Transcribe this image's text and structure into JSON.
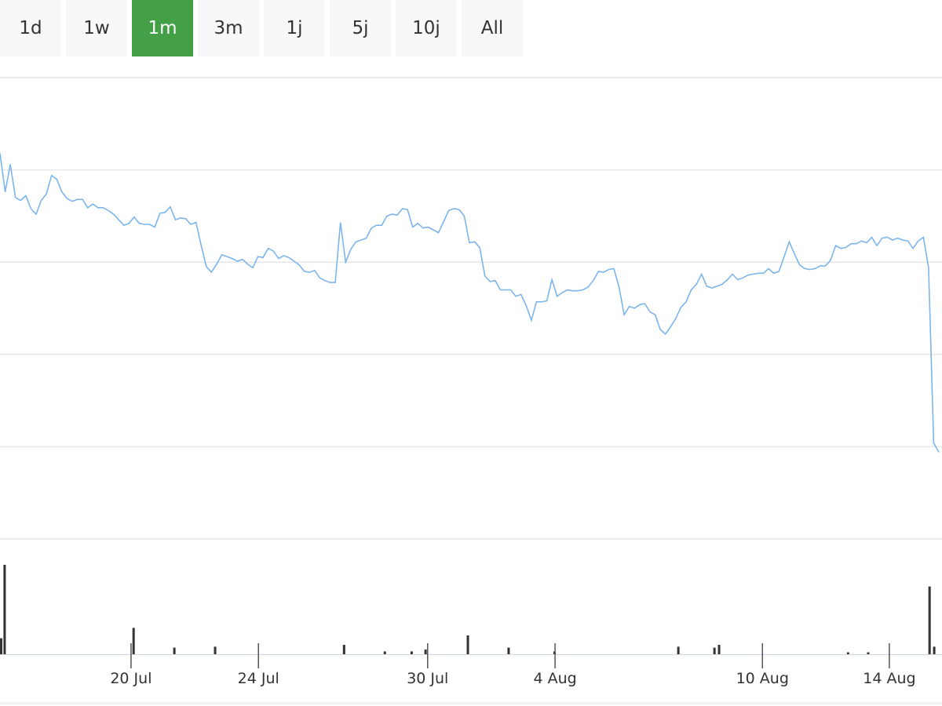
{
  "range_buttons": {
    "labels": [
      "1d",
      "1w",
      "1m",
      "3m",
      "1j",
      "5j",
      "10j",
      "All"
    ],
    "active": 2
  },
  "chart_data": [
    {
      "type": "line",
      "xlim": [
        0,
        182
      ],
      "ylim": [
        0,
        5
      ],
      "gridlines": [
        0,
        1,
        2,
        3,
        4,
        5
      ],
      "series": [
        {
          "color": "#7cb5ec",
          "values": [
            4.18,
            3.76,
            4.06,
            3.7,
            3.67,
            3.72,
            3.58,
            3.52,
            3.67,
            3.74,
            3.94,
            3.9,
            3.76,
            3.69,
            3.66,
            3.68,
            3.68,
            3.59,
            3.63,
            3.59,
            3.59,
            3.56,
            3.52,
            3.46,
            3.4,
            3.42,
            3.49,
            3.42,
            3.41,
            3.41,
            3.38,
            3.53,
            3.54,
            3.6,
            3.46,
            3.48,
            3.47,
            3.41,
            3.43,
            3.18,
            2.95,
            2.89,
            2.98,
            3.08,
            3.06,
            3.04,
            3.01,
            3.03,
            2.98,
            2.94,
            3.06,
            3.05,
            3.15,
            3.12,
            3.04,
            3.07,
            3.05,
            3.01,
            2.97,
            2.9,
            2.89,
            2.91,
            2.83,
            2.8,
            2.78,
            2.78,
            3.43,
            3.0,
            3.14,
            3.22,
            3.24,
            3.26,
            3.37,
            3.4,
            3.4,
            3.5,
            3.52,
            3.51,
            3.58,
            3.57,
            3.38,
            3.42,
            3.37,
            3.38,
            3.35,
            3.32,
            3.44,
            3.56,
            3.58,
            3.57,
            3.5,
            3.21,
            3.22,
            3.16,
            2.85,
            2.79,
            2.8,
            2.7,
            2.7,
            2.7,
            2.63,
            2.65,
            2.53,
            2.37,
            2.57,
            2.57,
            2.58,
            2.81,
            2.63,
            2.67,
            2.7,
            2.69,
            2.69,
            2.7,
            2.73,
            2.8,
            2.9,
            2.89,
            2.92,
            2.93,
            2.73,
            2.43,
            2.52,
            2.5,
            2.54,
            2.55,
            2.46,
            2.43,
            2.27,
            2.22,
            2.3,
            2.39,
            2.51,
            2.57,
            2.7,
            2.76,
            2.87,
            2.74,
            2.72,
            2.74,
            2.76,
            2.81,
            2.87,
            2.81,
            2.83,
            2.86,
            2.87,
            2.88,
            2.88,
            2.93,
            2.88,
            2.9,
            3.06,
            3.22,
            3.09,
            2.97,
            2.93,
            2.92,
            2.93,
            2.96,
            2.96,
            3.02,
            3.18,
            3.15,
            3.16,
            3.2,
            3.2,
            3.23,
            3.21,
            3.27,
            3.18,
            3.26,
            3.27,
            3.24,
            3.26,
            3.24,
            3.23,
            3.15,
            3.23,
            3.27,
            2.94,
            1.04,
            0.94
          ]
        }
      ]
    },
    {
      "type": "bar",
      "color": "#333333",
      "xlim": [
        0,
        182
      ],
      "ylim": [
        0,
        10
      ],
      "x": [
        0.15,
        0.9,
        25.9,
        33.8,
        41.7,
        66.7,
        74.6,
        79.8,
        82.5,
        90.7,
        98.6,
        107.5,
        131.5,
        138.5,
        139.4,
        164.4,
        168.3,
        180.2,
        181.1
      ],
      "values": [
        1.7,
        9.5,
        2.8,
        0.7,
        0.8,
        1.0,
        0.3,
        0.3,
        0.5,
        2.0,
        0.7,
        0.3,
        0.8,
        0.7,
        1.0,
        0.2,
        0.2,
        7.2,
        0.8
      ],
      "xticks": [
        {
          "value": 25.4,
          "label": "20 Jul"
        },
        {
          "value": 50.1,
          "label": "24 Jul"
        },
        {
          "value": 82.9,
          "label": "30 Jul"
        },
        {
          "value": 107.6,
          "label": "4 Aug"
        },
        {
          "value": 147.8,
          "label": "10 Aug"
        },
        {
          "value": 172.4,
          "label": "14 Aug"
        }
      ]
    }
  ]
}
